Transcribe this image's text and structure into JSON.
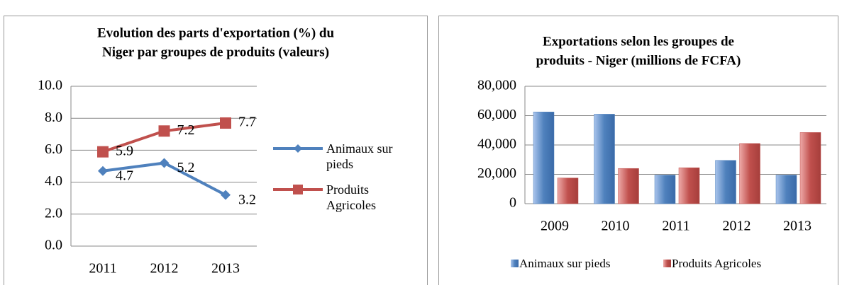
{
  "charts": [
    {
      "chart_data": {
        "type": "line",
        "title": [
          "Evolution des parts d'exportation (%) du",
          "Niger par groupes de produits (valeurs)"
        ],
        "categories": [
          "2011",
          "2012",
          "2013"
        ],
        "series": [
          {
            "name": "Animaux sur pieds",
            "color": "#4f81bd",
            "marker": "diamond",
            "values": [
              4.7,
              5.2,
              3.2
            ]
          },
          {
            "name": "Produits Agricoles",
            "color": "#c0504d",
            "marker": "square",
            "values": [
              5.9,
              7.2,
              7.7
            ]
          }
        ],
        "ylim": [
          0,
          10
        ],
        "yticks": [
          {
            "value": 0,
            "label": "0.0"
          },
          {
            "value": 2,
            "label": "2.0"
          },
          {
            "value": 4,
            "label": "4.0"
          },
          {
            "value": 6,
            "label": "6.0"
          },
          {
            "value": 8,
            "label": "8.0"
          },
          {
            "value": 10,
            "label": "10.0"
          }
        ],
        "grid": true,
        "legend": "right"
      }
    },
    {
      "chart_data": {
        "type": "bar",
        "title": [
          "Exportations selon les groupes de",
          "produits - Niger (millions de FCFA)"
        ],
        "categories": [
          "2009",
          "2010",
          "2011",
          "2012",
          "2013"
        ],
        "series": [
          {
            "name": "Animaux sur pieds",
            "color": "#4f81bd",
            "values": [
              62500,
              61000,
              19500,
              29500,
              19500
            ]
          },
          {
            "name": "Produits Agricoles",
            "color": "#c0504d",
            "values": [
              17500,
              24000,
              24500,
              41000,
              48500
            ]
          }
        ],
        "ylim": [
          0,
          80000
        ],
        "yticks": [
          0,
          {
            "value": 20000,
            "label": "20,000"
          },
          {
            "value": 40000,
            "label": "40,000"
          },
          {
            "value": 60000,
            "label": "60,000"
          },
          {
            "value": 80000,
            "label": "80,000"
          }
        ],
        "grid": true,
        "legend": "bottom"
      }
    }
  ]
}
